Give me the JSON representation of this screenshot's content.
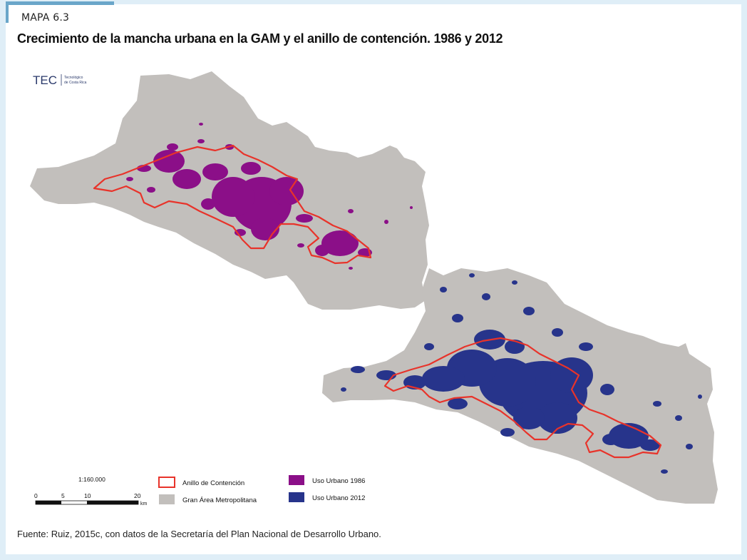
{
  "figure": {
    "label": "MAPA 6.3",
    "title": "Crecimiento de la mancha urbana en la GAM y el anillo de contención. 1986 y 2012",
    "source": "Fuente: Ruiz, 2015c, con datos de la Secretaría del Plan Nacional de Desarrollo Urbano."
  },
  "logo": {
    "text": "TEC",
    "subtext_line1": "Tecnológico",
    "subtext_line2": "de Costa Rica"
  },
  "scale_bar": {
    "ratio": "1:160.000",
    "ticks": [
      "0",
      "5",
      "10",
      "20"
    ],
    "unit": "km"
  },
  "legend": {
    "items": [
      {
        "label": "Anillo de Contención",
        "color": "#e8332a",
        "style": "outline"
      },
      {
        "label": "Gran Área Metropolitana",
        "color": "#c2bfbc",
        "style": "fill"
      },
      {
        "label": "Uso Urbano 1986",
        "color": "#8b0f88",
        "style": "fill"
      },
      {
        "label": "Uso Urbano 2012",
        "color": "#27348b",
        "style": "fill"
      }
    ]
  },
  "colors": {
    "region": "#c2bfbc",
    "ring": "#e8332a",
    "urban_1986": "#8b0f88",
    "urban_2012": "#27348b"
  }
}
